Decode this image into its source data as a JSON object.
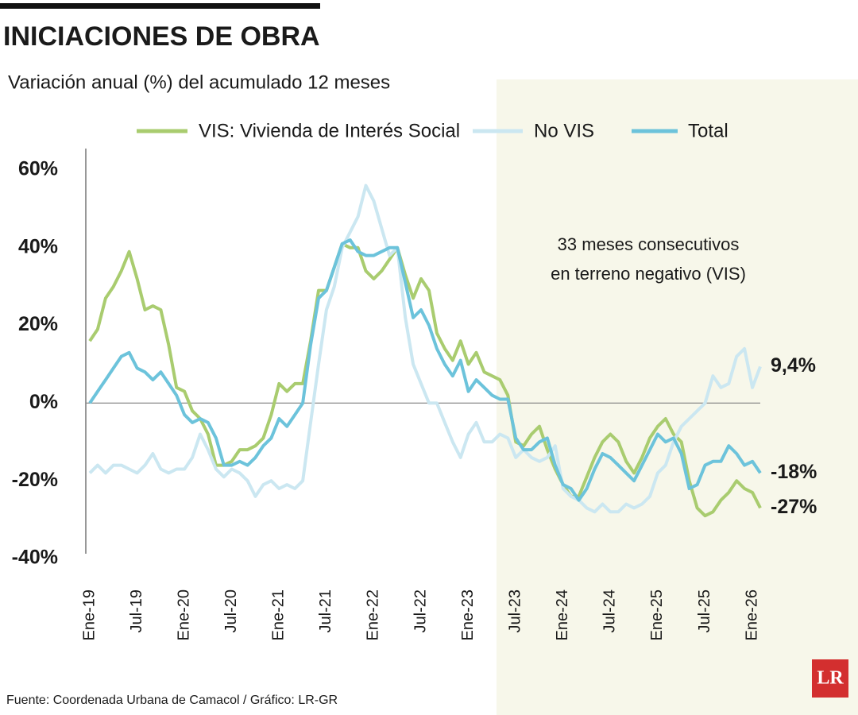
{
  "chart_data": {
    "type": "line",
    "title": "INICIACIONES DE OBRA",
    "subtitle": "Variación anual (%) del acumulado 12 meses",
    "source": "Fuente: Coordenada Urbana de Camacol / Gráfico: LR-GR",
    "logo": "LR",
    "annotation": [
      "33 meses consecutivos",
      "en terreno negativo (VIS)"
    ],
    "categories": [
      "Ene-19",
      null,
      null,
      null,
      null,
      null,
      "Jul-19",
      null,
      null,
      null,
      null,
      null,
      "Ene-20",
      null,
      null,
      null,
      null,
      null,
      "Jul-20",
      null,
      null,
      null,
      null,
      null,
      "Ene-21",
      null,
      null,
      null,
      null,
      null,
      "Jul-21",
      null,
      null,
      null,
      null,
      null,
      "Ene-22",
      null,
      null,
      null,
      null,
      null,
      "Jul-22",
      null,
      null,
      null,
      null,
      null,
      "Ene-23",
      null,
      null,
      null,
      null,
      null,
      "Jul-23",
      null,
      null,
      null,
      null,
      null,
      "Ene-24",
      null,
      null,
      null,
      null,
      null,
      "Jul-24",
      null,
      null,
      null,
      null,
      null,
      "Ene-25",
      null,
      null,
      null,
      null,
      null,
      "Jul-25",
      null,
      null,
      null,
      null,
      null,
      "Ene-26",
      null
    ],
    "ylim": [
      -40,
      60
    ],
    "yticks": [
      {
        "value": 60,
        "label": "60%"
      },
      {
        "value": 40,
        "label": "40%"
      },
      {
        "value": 20,
        "label": "20%"
      },
      {
        "value": 0,
        "label": "0%"
      },
      {
        "value": -20,
        "label": "-20%"
      },
      {
        "value": -40,
        "label": "-40%"
      }
    ],
    "zero_line": true,
    "series": [
      {
        "name": "VIS: Vivienda de Interés Social",
        "color": "#a9cc6f",
        "values": [
          16,
          19,
          27,
          30,
          34,
          39,
          32,
          24,
          25,
          24,
          15,
          4,
          3,
          -2,
          -4,
          -8,
          -16,
          -16,
          -15,
          -12,
          -12,
          -11,
          -9,
          -3,
          5,
          3,
          5,
          5,
          16,
          29,
          29,
          35,
          41,
          40,
          40,
          34,
          32,
          34,
          37,
          40,
          33,
          27,
          32,
          29,
          18,
          14,
          11,
          16,
          10,
          13,
          8,
          7,
          6,
          2,
          -10,
          -11,
          -8,
          -6,
          -12,
          -17,
          -21,
          -24,
          -24,
          -19,
          -14,
          -10,
          -8,
          -10,
          -15,
          -18,
          -14,
          -9,
          -6,
          -4,
          -8,
          -10,
          -20,
          -27,
          -29,
          -28,
          -25,
          -23,
          -20,
          -22,
          -23,
          -27
        ],
        "value_labels": [
          null,
          null,
          null,
          null,
          null,
          null,
          null,
          null,
          null,
          null,
          null,
          null,
          null,
          null,
          null,
          null,
          null,
          null,
          null,
          null,
          null,
          null,
          null,
          null,
          null,
          null,
          null,
          null,
          null,
          null,
          null,
          null,
          null,
          null,
          null,
          null,
          null,
          null,
          null,
          null,
          null,
          null,
          null,
          null,
          null,
          null,
          null,
          null,
          null,
          null,
          null,
          null,
          null,
          null,
          null,
          null,
          null,
          null,
          null,
          null,
          null,
          null,
          null,
          null,
          null,
          null,
          null,
          null,
          null,
          null,
          null,
          null,
          null,
          null,
          null,
          null,
          null,
          null,
          null,
          null,
          null,
          null,
          null,
          null,
          null,
          "-27%"
        ]
      },
      {
        "name": "No VIS",
        "color": "#cbe7f1",
        "values": [
          -18,
          -16,
          -18,
          -16,
          -16,
          -17,
          -18,
          -16,
          -13,
          -17,
          -18,
          -17,
          -17,
          -14,
          -8,
          -12,
          -17,
          -19,
          -17,
          -18,
          -20,
          -24,
          -21,
          -20,
          -22,
          -21,
          -22,
          -20,
          -5,
          10,
          24,
          30,
          40,
          44,
          48,
          56,
          52,
          45,
          38,
          40,
          22,
          10,
          5,
          0,
          0,
          -5,
          -10,
          -14,
          -8,
          -5,
          -10,
          -10,
          -8,
          -9,
          -14,
          -12,
          -14,
          -15,
          -14,
          -11,
          -22,
          -24,
          -25,
          -27,
          -28,
          -26,
          -28,
          -28,
          -26,
          -27,
          -26,
          -24,
          -18,
          -16,
          -10,
          -6,
          -4,
          -2,
          0,
          7,
          4,
          5,
          12,
          14,
          4,
          9.4
        ],
        "value_labels": [
          null,
          null,
          null,
          null,
          null,
          null,
          null,
          null,
          null,
          null,
          null,
          null,
          null,
          null,
          null,
          null,
          null,
          null,
          null,
          null,
          null,
          null,
          null,
          null,
          null,
          null,
          null,
          null,
          null,
          null,
          null,
          null,
          null,
          null,
          null,
          null,
          null,
          null,
          null,
          null,
          null,
          null,
          null,
          null,
          null,
          null,
          null,
          null,
          null,
          null,
          null,
          null,
          null,
          null,
          null,
          null,
          null,
          null,
          null,
          null,
          null,
          null,
          null,
          null,
          null,
          null,
          null,
          null,
          null,
          null,
          null,
          null,
          null,
          null,
          null,
          null,
          null,
          null,
          null,
          null,
          null,
          null,
          null,
          null,
          null,
          "9,4%"
        ]
      },
      {
        "name": "Total",
        "color": "#6cc3db",
        "values": [
          0,
          3,
          6,
          9,
          12,
          13,
          9,
          8,
          6,
          8,
          5,
          2,
          -3,
          -5,
          -4,
          -5,
          -9,
          -16,
          -16,
          -15,
          -16,
          -14,
          -11,
          -9,
          -4,
          -6,
          -3,
          0,
          15,
          27,
          29,
          35,
          41,
          42,
          39,
          38,
          38,
          39,
          40,
          40,
          31,
          22,
          24,
          20,
          14,
          10,
          7,
          11,
          3,
          6,
          4,
          2,
          1,
          1,
          -9,
          -12,
          -12,
          -10,
          -9,
          -16,
          -21,
          -22,
          -25,
          -22,
          -17,
          -13,
          -14,
          -16,
          -18,
          -20,
          -16,
          -12,
          -8,
          -10,
          -9,
          -13,
          -22,
          -21,
          -16,
          -15,
          -15,
          -11,
          -13,
          -16,
          -15,
          -18
        ],
        "value_labels": [
          null,
          null,
          null,
          null,
          null,
          null,
          null,
          null,
          null,
          null,
          null,
          null,
          null,
          null,
          null,
          null,
          null,
          null,
          null,
          null,
          null,
          null,
          null,
          null,
          null,
          null,
          null,
          null,
          null,
          null,
          null,
          null,
          null,
          null,
          null,
          null,
          null,
          null,
          null,
          null,
          null,
          null,
          null,
          null,
          null,
          null,
          null,
          null,
          null,
          null,
          null,
          null,
          null,
          null,
          null,
          null,
          null,
          null,
          null,
          null,
          null,
          null,
          null,
          null,
          null,
          null,
          null,
          null,
          null,
          null,
          null,
          null,
          null,
          null,
          null,
          null,
          null,
          null,
          null,
          null,
          null,
          null,
          null,
          null,
          null,
          "-18%"
        ]
      }
    ]
  }
}
